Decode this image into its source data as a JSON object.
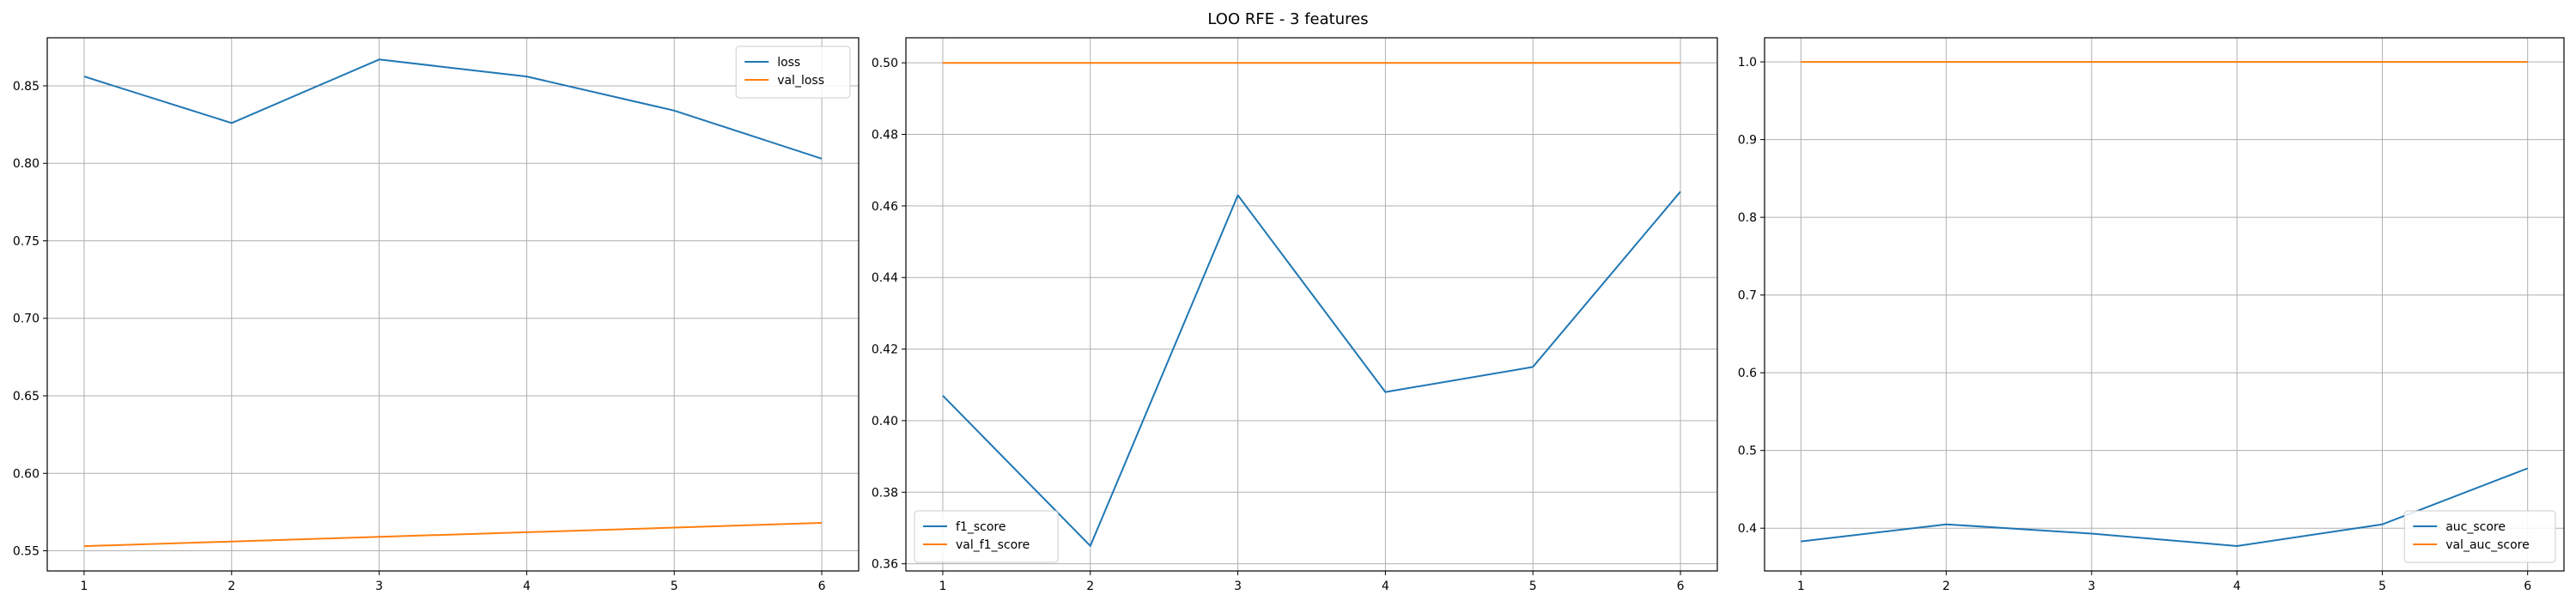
{
  "figure": {
    "suptitle": "LOO RFE - 3 features"
  },
  "colors": {
    "train": "#1f77b4",
    "val": "#ff7f0e",
    "grid": "#b0b0b0",
    "axes": "#000000"
  },
  "chart_data": [
    {
      "type": "line",
      "title": "",
      "xlabel": "",
      "ylabel": "",
      "x": [
        1,
        2,
        3,
        4,
        5,
        6
      ],
      "xticks": [
        "1",
        "2",
        "3",
        "4",
        "5",
        "6"
      ],
      "xlim": [
        0.75,
        6.25
      ],
      "ylim": [
        0.537,
        0.881
      ],
      "yticks": [
        "0.55",
        "0.60",
        "0.65",
        "0.70",
        "0.75",
        "0.80",
        "0.85"
      ],
      "grid": true,
      "legend_position": "top-right",
      "series": [
        {
          "name": "loss",
          "color": "#1f77b4",
          "values": [
            0.856,
            0.826,
            0.867,
            0.856,
            0.834,
            0.803
          ]
        },
        {
          "name": "val_loss",
          "color": "#ff7f0e",
          "values": [
            0.553,
            0.556,
            0.559,
            0.562,
            0.565,
            0.568
          ]
        }
      ]
    },
    {
      "type": "line",
      "title": "",
      "xlabel": "",
      "ylabel": "",
      "x": [
        1,
        2,
        3,
        4,
        5,
        6
      ],
      "xticks": [
        "1",
        "2",
        "3",
        "4",
        "5",
        "6"
      ],
      "xlim": [
        0.75,
        6.25
      ],
      "ylim": [
        0.358,
        0.507
      ],
      "yticks": [
        "0.36",
        "0.38",
        "0.40",
        "0.42",
        "0.44",
        "0.46",
        "0.48",
        "0.50"
      ],
      "grid": true,
      "legend_position": "bottom-left",
      "series": [
        {
          "name": "f1_score",
          "color": "#1f77b4",
          "values": [
            0.407,
            0.365,
            0.463,
            0.408,
            0.415,
            0.464
          ]
        },
        {
          "name": "val_f1_score",
          "color": "#ff7f0e",
          "values": [
            0.5,
            0.5,
            0.5,
            0.5,
            0.5,
            0.5
          ]
        }
      ]
    },
    {
      "type": "line",
      "title": "",
      "xlabel": "",
      "ylabel": "",
      "x": [
        1,
        2,
        3,
        4,
        5,
        6
      ],
      "xticks": [
        "1",
        "2",
        "3",
        "4",
        "5",
        "6"
      ],
      "xlim": [
        0.75,
        6.25
      ],
      "ylim": [
        0.345,
        1.031
      ],
      "yticks": [
        "0.4",
        "0.5",
        "0.6",
        "0.7",
        "0.8",
        "0.9",
        "1.0"
      ],
      "grid": true,
      "legend_position": "bottom-right",
      "series": [
        {
          "name": "auc_score",
          "color": "#1f77b4",
          "values": [
            0.383,
            0.405,
            0.393,
            0.377,
            0.405,
            0.477
          ]
        },
        {
          "name": "val_auc_score",
          "color": "#ff7f0e",
          "values": [
            1.0,
            1.0,
            1.0,
            1.0,
            1.0,
            1.0
          ]
        }
      ]
    }
  ]
}
